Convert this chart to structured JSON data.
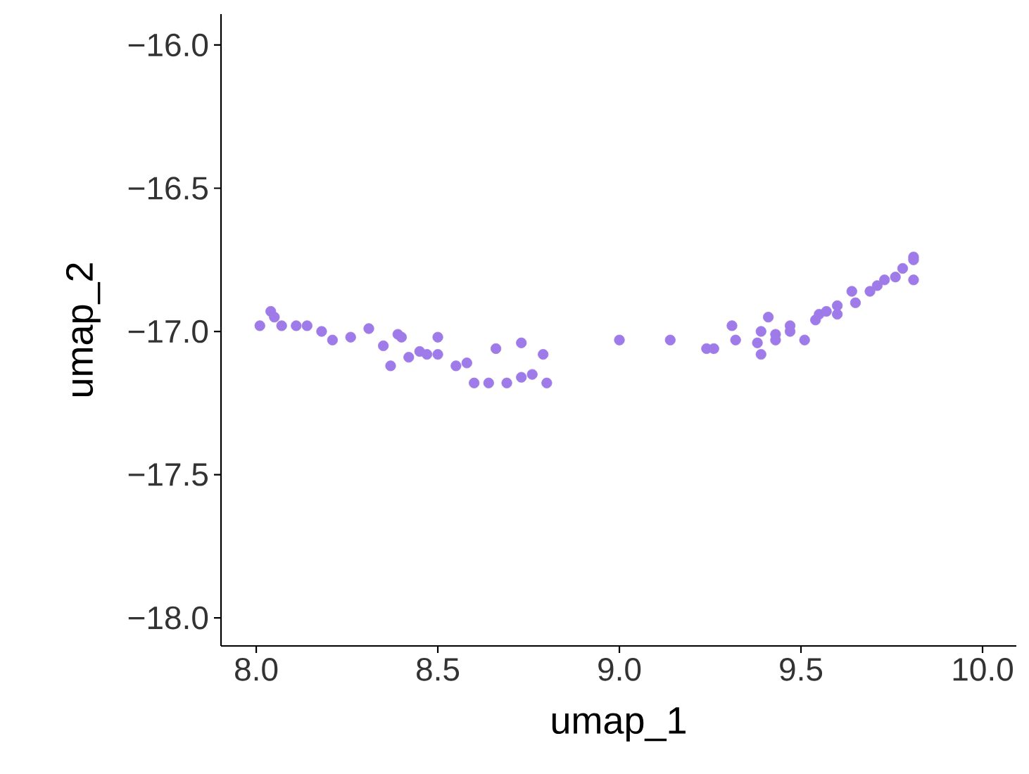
{
  "chart_data": {
    "type": "scatter",
    "xlabel": "umap_1",
    "ylabel": "umap_2",
    "xlim": [
      7.903,
      10.093
    ],
    "ylim": [
      -18.098,
      -15.892
    ],
    "xticks": [
      {
        "value": 8,
        "label": "8.0"
      },
      8.5,
      {
        "value": 9,
        "label": "9.0"
      },
      9.5,
      {
        "value": 10,
        "label": "10.0"
      }
    ],
    "yticks": [
      {
        "value": -18,
        "label": "−18.0"
      },
      {
        "value": -17.5,
        "label": "−17.5"
      },
      {
        "value": -17,
        "label": "−17.0"
      },
      {
        "value": -16.5,
        "label": "−16.5"
      },
      {
        "value": -16,
        "label": "−16.0"
      }
    ],
    "grid": false,
    "series": [
      {
        "color": "#9e7be8",
        "x": [
          8.01,
          8.04,
          8.05,
          8.07,
          8.11,
          8.14,
          8.18,
          8.21,
          8.26,
          8.31,
          8.35,
          8.37,
          8.39,
          8.4,
          8.42,
          8.45,
          8.47,
          8.5,
          8.5,
          8.55,
          8.58,
          8.6,
          8.64,
          8.66,
          8.69,
          8.73,
          8.73,
          8.76,
          8.79,
          8.8,
          9.0,
          9.14,
          9.24,
          9.26,
          9.31,
          9.32,
          9.38,
          9.39,
          9.39,
          9.41,
          9.43,
          9.43,
          9.47,
          9.47,
          9.51,
          9.54,
          9.55,
          9.57,
          9.6,
          9.6,
          9.64,
          9.65,
          9.69,
          9.71,
          9.73,
          9.76,
          9.78,
          9.81,
          9.81,
          9.81
        ],
        "values": [
          -16.98,
          -16.93,
          -16.95,
          -16.98,
          -16.98,
          -16.98,
          -17.0,
          -17.03,
          -17.02,
          -16.99,
          -17.05,
          -17.12,
          -17.01,
          -17.02,
          -17.09,
          -17.07,
          -17.08,
          -17.02,
          -17.08,
          -17.12,
          -17.11,
          -17.18,
          -17.18,
          -17.06,
          -17.18,
          -17.04,
          -17.16,
          -17.15,
          -17.08,
          -17.18,
          -17.03,
          -17.03,
          -17.06,
          -17.06,
          -16.98,
          -17.03,
          -17.04,
          -17.0,
          -17.08,
          -16.95,
          -17.01,
          -17.03,
          -16.98,
          -17.0,
          -17.03,
          -16.96,
          -16.94,
          -16.93,
          -16.91,
          -16.94,
          -16.86,
          -16.9,
          -16.86,
          -16.84,
          -16.82,
          -16.81,
          -16.78,
          -16.74,
          -16.82,
          -16.75
        ]
      }
    ]
  }
}
